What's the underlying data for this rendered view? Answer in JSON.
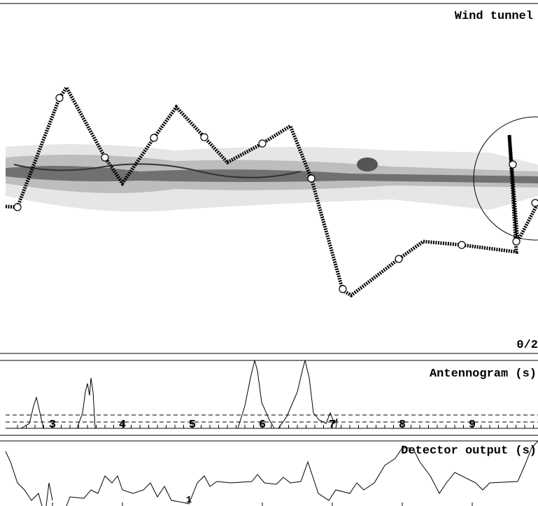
{
  "header": {
    "title": "Wind tunnel",
    "counter": "0/2"
  },
  "antennogram": {
    "title": "Antennogram (s)",
    "ticks": [
      "3",
      "4",
      "5",
      "6",
      "7",
      "8",
      "9"
    ]
  },
  "detector": {
    "title": "Detector output (s)",
    "marker": "1"
  }
}
